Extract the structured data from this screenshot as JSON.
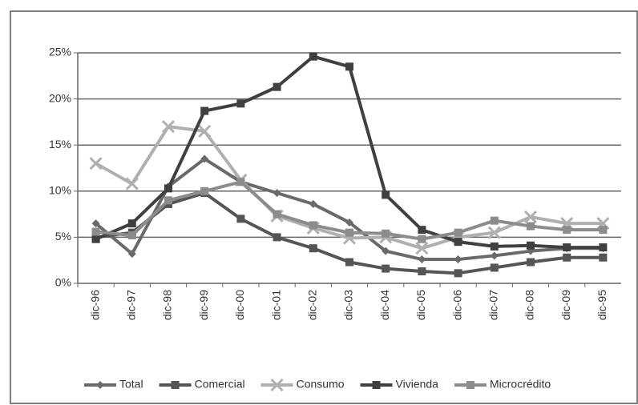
{
  "chart_data": {
    "type": "line",
    "categories": [
      "dic-96",
      "dic-97",
      "dic-98",
      "dic-99",
      "dic-00",
      "dic-01",
      "dic-02",
      "dic-03",
      "dic-04",
      "dic-05",
      "dic-06",
      "dic-07",
      "dic-08",
      "dic-09",
      "dic-95"
    ],
    "series": [
      {
        "name": "Total",
        "color": "#6a6a6a",
        "marker": "diamond",
        "values": [
          6.5,
          3.2,
          10.5,
          13.5,
          11.0,
          9.8,
          8.6,
          6.6,
          3.5,
          2.6,
          2.6,
          3.0,
          3.5,
          3.8,
          3.8
        ]
      },
      {
        "name": "Comercial",
        "color": "#555555",
        "marker": "square",
        "values": [
          5.0,
          5.5,
          8.6,
          9.8,
          7.0,
          5.0,
          3.8,
          2.3,
          1.6,
          1.3,
          1.1,
          1.7,
          2.3,
          2.8,
          2.8
        ]
      },
      {
        "name": "Consumo",
        "color": "#b0b0b0",
        "marker": "x",
        "values": [
          13.0,
          10.8,
          17.0,
          16.5,
          11.2,
          7.3,
          6.0,
          4.9,
          5.0,
          3.8,
          5.0,
          5.5,
          7.2,
          6.5,
          6.5
        ]
      },
      {
        "name": "Vivienda",
        "color": "#404040",
        "marker": "square",
        "values": [
          4.8,
          6.5,
          10.3,
          18.7,
          19.5,
          21.3,
          24.6,
          23.5,
          9.6,
          5.8,
          4.5,
          4.0,
          4.1,
          3.9,
          3.9
        ]
      },
      {
        "name": "Microcrédito",
        "color": "#8c8c8c",
        "marker": "square",
        "values": [
          5.6,
          5.2,
          9.0,
          10.0,
          11.0,
          7.5,
          6.3,
          5.5,
          5.4,
          4.8,
          5.5,
          6.8,
          6.2,
          5.8,
          5.8
        ]
      }
    ],
    "ylim": [
      0,
      25
    ],
    "yticks": [
      {
        "value": 0,
        "label": "0%"
      },
      {
        "value": 5,
        "label": "5%"
      },
      {
        "value": 10,
        "label": "10%"
      },
      {
        "value": 15,
        "label": "15%"
      },
      {
        "value": 20,
        "label": "20%"
      },
      {
        "value": 25,
        "label": "25%"
      }
    ],
    "grid": true
  }
}
